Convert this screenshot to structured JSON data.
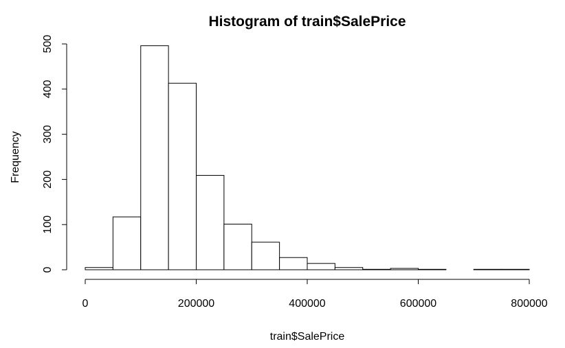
{
  "chart_data": {
    "type": "bar",
    "title": "Histogram of train$SalePrice",
    "xlabel": "train$SalePrice",
    "ylabel": "Frequency",
    "bin_width": 50000,
    "bins": [
      {
        "start": 0,
        "end": 50000,
        "count": 5
      },
      {
        "start": 50000,
        "end": 100000,
        "count": 117
      },
      {
        "start": 100000,
        "end": 150000,
        "count": 496
      },
      {
        "start": 150000,
        "end": 200000,
        "count": 413
      },
      {
        "start": 200000,
        "end": 250000,
        "count": 209
      },
      {
        "start": 250000,
        "end": 300000,
        "count": 101
      },
      {
        "start": 300000,
        "end": 350000,
        "count": 61
      },
      {
        "start": 350000,
        "end": 400000,
        "count": 27
      },
      {
        "start": 400000,
        "end": 450000,
        "count": 14
      },
      {
        "start": 450000,
        "end": 500000,
        "count": 5
      },
      {
        "start": 500000,
        "end": 550000,
        "count": 1
      },
      {
        "start": 550000,
        "end": 600000,
        "count": 3
      },
      {
        "start": 600000,
        "end": 650000,
        "count": 1
      },
      {
        "start": 650000,
        "end": 700000,
        "count": 0
      },
      {
        "start": 700000,
        "end": 750000,
        "count": 1
      },
      {
        "start": 750000,
        "end": 800000,
        "count": 1
      }
    ],
    "xlim": [
      0,
      800000
    ],
    "ylim": [
      0,
      500
    ],
    "x_ticks": [
      0,
      200000,
      400000,
      600000,
      800000
    ],
    "x_tick_labels": [
      "0",
      "200000",
      "400000",
      "600000",
      "800000"
    ],
    "y_ticks": [
      0,
      100,
      200,
      300,
      400,
      500
    ],
    "y_tick_labels": [
      "0",
      "100",
      "200",
      "300",
      "400",
      "500"
    ],
    "grid": false,
    "legend": "none",
    "colors": {
      "bar_fill": "#ffffff",
      "bar_stroke": "#000000",
      "axis": "#000000",
      "text": "#000000"
    }
  }
}
